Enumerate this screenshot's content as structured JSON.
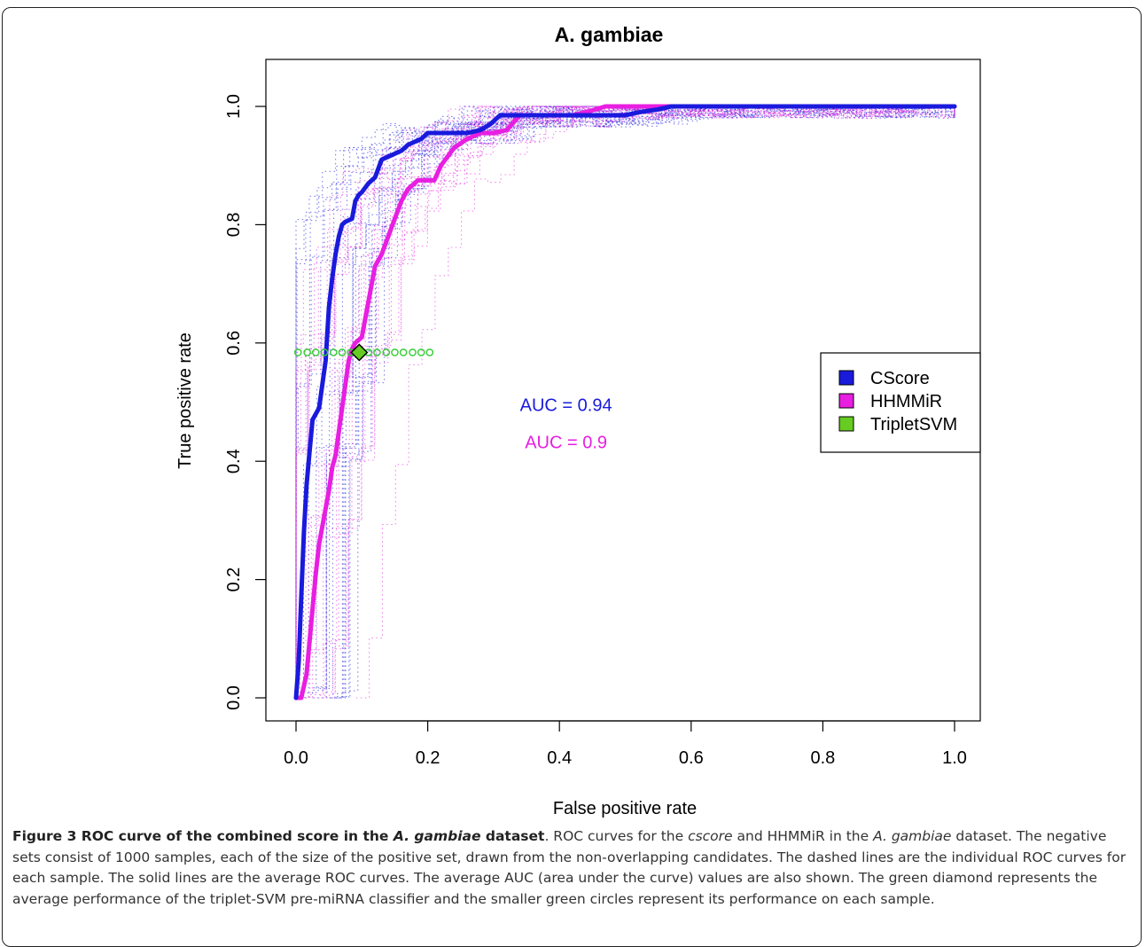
{
  "chart_data": {
    "type": "line",
    "title": "A. gambiae",
    "xlabel": "False positive rate",
    "ylabel": "True positive rate",
    "xlim": [
      0,
      1
    ],
    "ylim": [
      0,
      1
    ],
    "xticks": [
      "0.0",
      "0.2",
      "0.4",
      "0.6",
      "0.8",
      "1.0"
    ],
    "yticks": [
      "0.0",
      "0.2",
      "0.4",
      "0.6",
      "0.8",
      "1.0"
    ],
    "grid": false,
    "legend_position": "right",
    "series": [
      {
        "name": "CScore",
        "color": "#1a1adc",
        "style": "solid-thick",
        "x": [
          0,
          0.004,
          0.008,
          0.012,
          0.016,
          0.02,
          0.025,
          0.03,
          0.035,
          0.04,
          0.045,
          0.05,
          0.055,
          0.06,
          0.065,
          0.07,
          0.075,
          0.085,
          0.09,
          0.095,
          0.1,
          0.11,
          0.12,
          0.13,
          0.14,
          0.15,
          0.16,
          0.17,
          0.18,
          0.19,
          0.2,
          0.22,
          0.26,
          0.28,
          0.295,
          0.31,
          0.34,
          0.4,
          0.5,
          0.52,
          0.55,
          0.57,
          0.7,
          1
        ],
        "y": [
          0,
          0.06,
          0.17,
          0.28,
          0.36,
          0.41,
          0.47,
          0.48,
          0.49,
          0.53,
          0.57,
          0.66,
          0.71,
          0.75,
          0.78,
          0.8,
          0.805,
          0.81,
          0.84,
          0.85,
          0.855,
          0.87,
          0.88,
          0.91,
          0.915,
          0.92,
          0.925,
          0.935,
          0.94,
          0.945,
          0.955,
          0.955,
          0.955,
          0.96,
          0.97,
          0.985,
          0.985,
          0.985,
          0.985,
          0.99,
          0.995,
          1.0,
          1.0,
          1.0
        ]
      },
      {
        "name": "HHMMiR",
        "color": "#e81ee0",
        "style": "solid-thick",
        "x": [
          0,
          0.008,
          0.012,
          0.016,
          0.02,
          0.025,
          0.03,
          0.035,
          0.04,
          0.045,
          0.05,
          0.055,
          0.06,
          0.065,
          0.07,
          0.075,
          0.08,
          0.085,
          0.09,
          0.1,
          0.11,
          0.12,
          0.13,
          0.14,
          0.15,
          0.16,
          0.17,
          0.185,
          0.21,
          0.22,
          0.24,
          0.26,
          0.28,
          0.3,
          0.32,
          0.34,
          0.38,
          0.42,
          0.44,
          0.47,
          0.5,
          0.7,
          1
        ],
        "y": [
          0,
          0.0,
          0.02,
          0.04,
          0.09,
          0.15,
          0.21,
          0.26,
          0.29,
          0.32,
          0.35,
          0.39,
          0.41,
          0.45,
          0.49,
          0.53,
          0.57,
          0.59,
          0.6,
          0.61,
          0.67,
          0.73,
          0.75,
          0.78,
          0.81,
          0.84,
          0.86,
          0.875,
          0.875,
          0.9,
          0.93,
          0.945,
          0.955,
          0.955,
          0.96,
          0.985,
          0.985,
          0.985,
          0.99,
          1.0,
          1.0,
          1.0,
          1.0
        ]
      },
      {
        "name": "TripletSVM",
        "color": "#66cc22",
        "style": "point",
        "x": [
          0.096
        ],
        "y": [
          0.584
        ]
      }
    ],
    "triplet_samples": {
      "color": "#33cc33",
      "y": 0.584,
      "x": [
        0.003,
        0.017,
        0.03,
        0.043,
        0.057,
        0.07,
        0.083,
        0.11,
        0.123,
        0.137,
        0.15,
        0.163,
        0.177,
        0.19,
        0.203
      ]
    },
    "annotations": [
      {
        "text": "AUC = 0.94",
        "x": 0.41,
        "y": 0.485,
        "color": "#1a1adc"
      },
      {
        "text": "AUC = 0.9",
        "x": 0.41,
        "y": 0.422,
        "color": "#e81ee0"
      }
    ]
  },
  "caption": {
    "label": "Figure 3 ROC curve of the combined score in the ",
    "label_italic": "A. gambiae",
    "label_end": " dataset",
    "t1": ". ROC curves for the ",
    "t1_it": "cscore",
    "t2": " and HHMMiR in the ",
    "t2_it": "A. gambiae",
    "t3": " dataset. The negative sets consist of 1000 samples, each of the size of the positive set, drawn from the non-overlapping candidates. The dashed lines are the individual ROC curves for each sample. The solid lines are the average ROC curves. The average AUC (area under the curve) values are also shown. The green diamond represents the average performance of the triplet-SVM pre-miRNA classifier and the smaller green circles represent its performance on each sample."
  }
}
